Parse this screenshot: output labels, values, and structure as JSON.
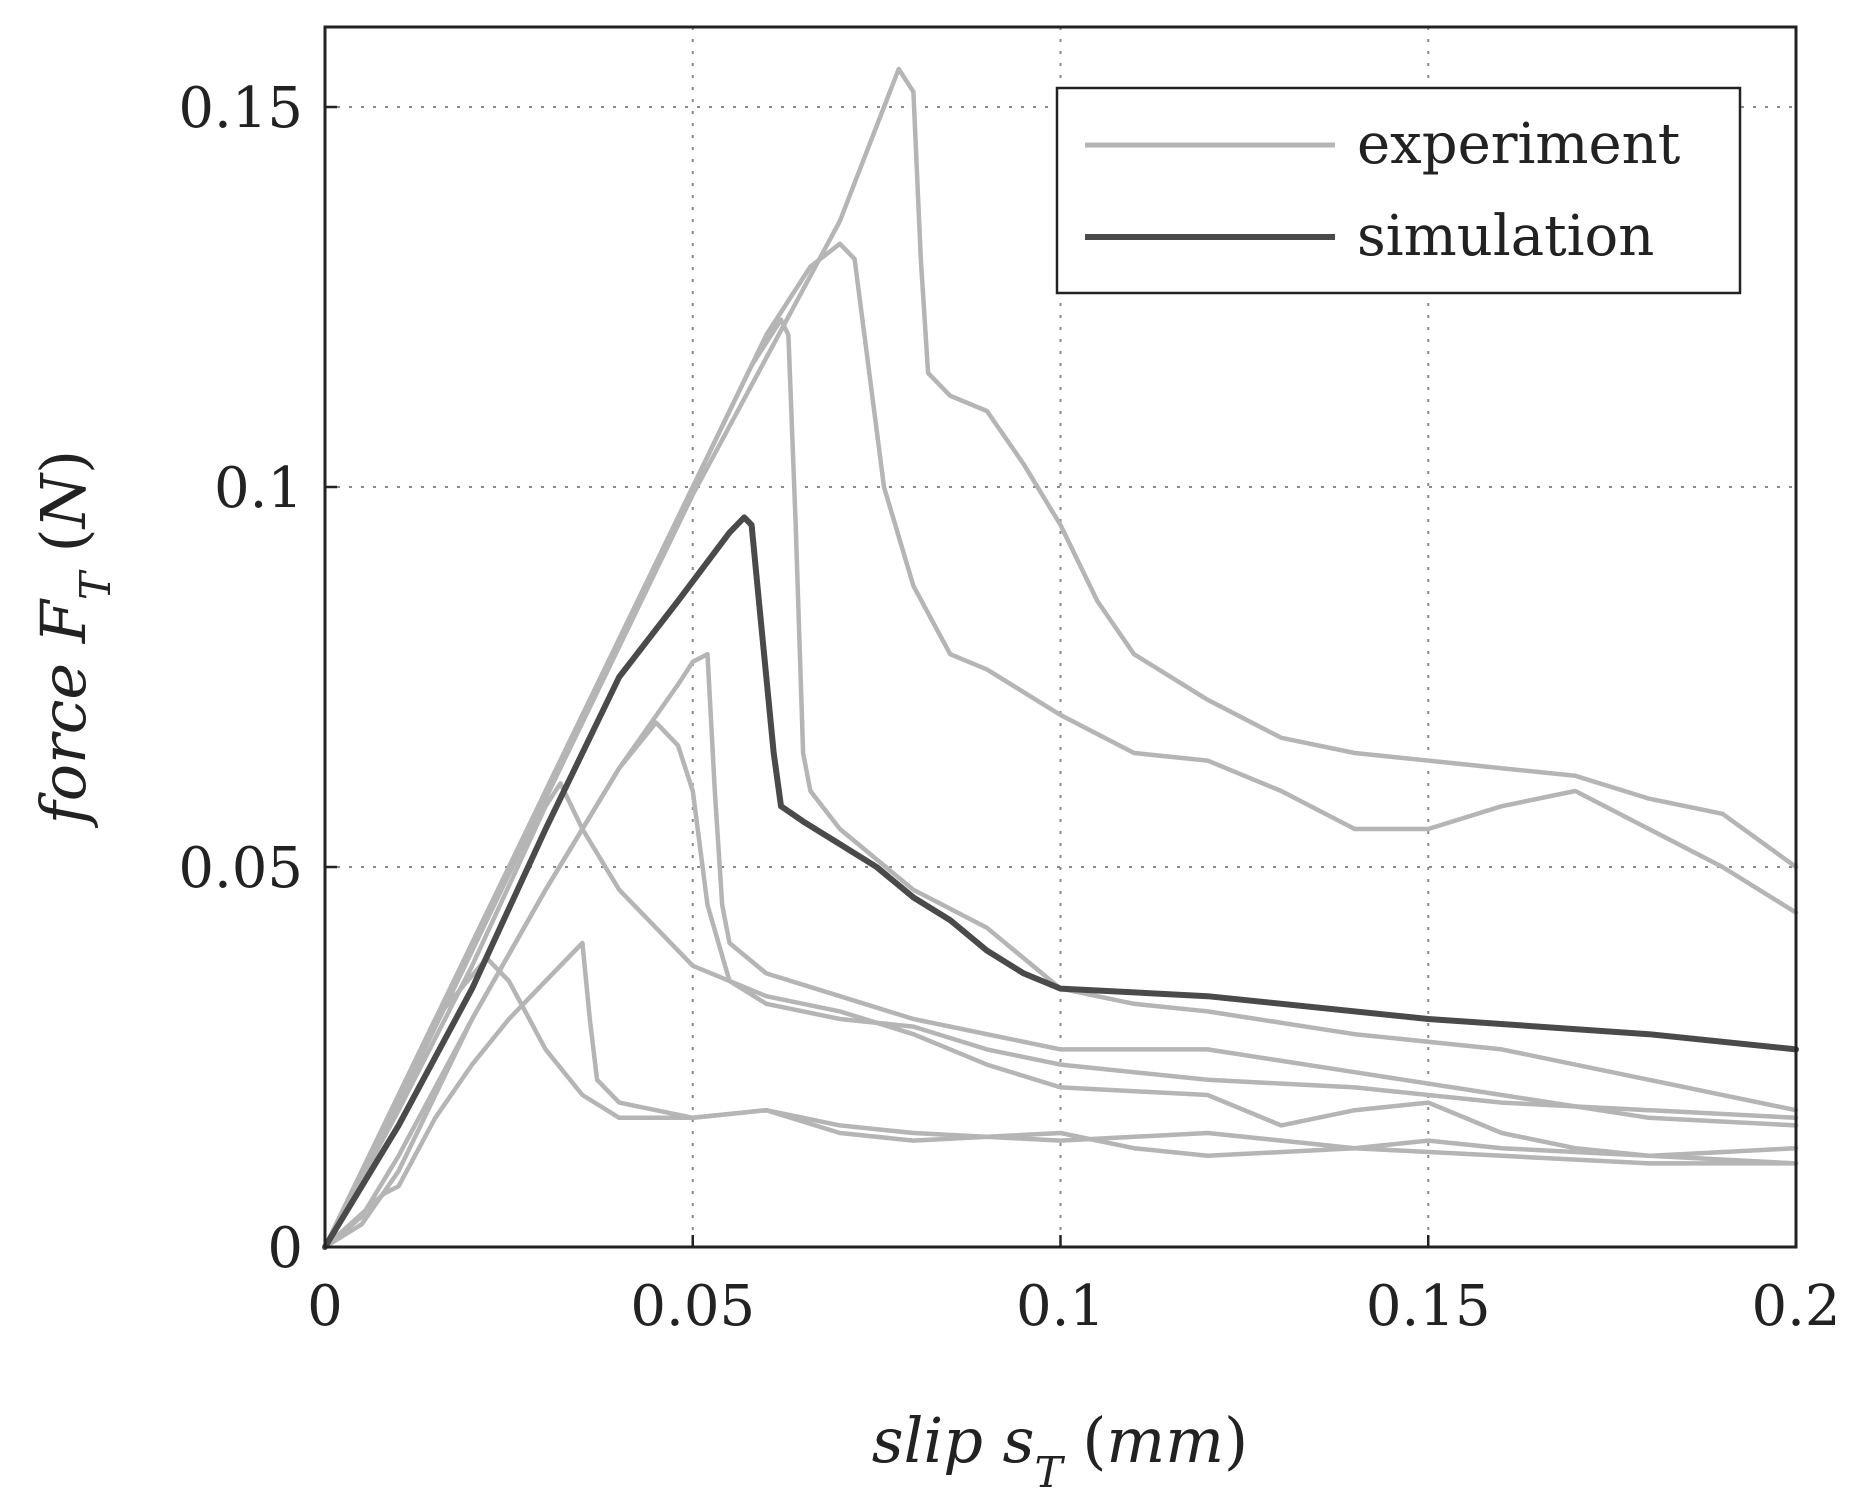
{
  "chart_data": {
    "type": "line",
    "title": "",
    "xlabel": "slip s_T (mm)",
    "ylabel": "force F_T (N)",
    "xlim": [
      0,
      0.2
    ],
    "ylim": [
      0,
      0.16
    ],
    "grid": true,
    "legend_position": "top-right",
    "x_ticks": [
      0,
      0.05,
      0.1,
      0.15,
      0.2
    ],
    "x_tick_labels": [
      "0",
      "0.05",
      "0.1",
      "0.15",
      "0.2"
    ],
    "y_ticks": [
      0,
      0.05,
      0.1,
      0.15
    ],
    "y_tick_labels": [
      "0",
      "0.05",
      "0.1",
      "0.15"
    ],
    "legend": [
      {
        "label": "experiment",
        "color": "#b5b5b5"
      },
      {
        "label": "simulation",
        "color": "#4a4a4a"
      }
    ],
    "series": [
      {
        "name": "simulation",
        "group": "simulation",
        "color": "#4a4a4a",
        "points": [
          [
            0,
            0
          ],
          [
            0.01,
            0.016
          ],
          [
            0.02,
            0.034
          ],
          [
            0.03,
            0.055
          ],
          [
            0.04,
            0.075
          ],
          [
            0.048,
            0.085
          ],
          [
            0.055,
            0.094
          ],
          [
            0.057,
            0.096
          ],
          [
            0.058,
            0.095
          ],
          [
            0.059,
            0.085
          ],
          [
            0.061,
            0.065
          ],
          [
            0.062,
            0.058
          ],
          [
            0.065,
            0.056
          ],
          [
            0.07,
            0.053
          ],
          [
            0.075,
            0.05
          ],
          [
            0.08,
            0.046
          ],
          [
            0.085,
            0.043
          ],
          [
            0.09,
            0.039
          ],
          [
            0.095,
            0.036
          ],
          [
            0.1,
            0.034
          ],
          [
            0.12,
            0.033
          ],
          [
            0.15,
            0.03
          ],
          [
            0.18,
            0.028
          ],
          [
            0.2,
            0.026
          ]
        ]
      },
      {
        "name": "experiment 1",
        "group": "experiment",
        "color": "#b5b5b5",
        "points": [
          [
            0,
            0
          ],
          [
            0.01,
            0.019
          ],
          [
            0.02,
            0.039
          ],
          [
            0.03,
            0.059
          ],
          [
            0.04,
            0.079
          ],
          [
            0.05,
            0.099
          ],
          [
            0.06,
            0.117
          ],
          [
            0.07,
            0.135
          ],
          [
            0.078,
            0.155
          ],
          [
            0.08,
            0.152
          ],
          [
            0.081,
            0.13
          ],
          [
            0.082,
            0.115
          ],
          [
            0.085,
            0.112
          ],
          [
            0.09,
            0.11
          ],
          [
            0.095,
            0.103
          ],
          [
            0.1,
            0.095
          ],
          [
            0.105,
            0.085
          ],
          [
            0.11,
            0.078
          ],
          [
            0.12,
            0.072
          ],
          [
            0.13,
            0.067
          ],
          [
            0.14,
            0.065
          ],
          [
            0.15,
            0.064
          ],
          [
            0.16,
            0.063
          ],
          [
            0.17,
            0.062
          ],
          [
            0.18,
            0.059
          ],
          [
            0.19,
            0.057
          ],
          [
            0.2,
            0.05
          ]
        ]
      },
      {
        "name": "experiment 2",
        "group": "experiment",
        "color": "#b5b5b5",
        "points": [
          [
            0,
            0
          ],
          [
            0.01,
            0.019
          ],
          [
            0.02,
            0.039
          ],
          [
            0.03,
            0.06
          ],
          [
            0.04,
            0.08
          ],
          [
            0.05,
            0.1
          ],
          [
            0.06,
            0.12
          ],
          [
            0.066,
            0.129
          ],
          [
            0.07,
            0.132
          ],
          [
            0.072,
            0.13
          ],
          [
            0.074,
            0.115
          ],
          [
            0.076,
            0.1
          ],
          [
            0.08,
            0.087
          ],
          [
            0.085,
            0.078
          ],
          [
            0.09,
            0.076
          ],
          [
            0.1,
            0.07
          ],
          [
            0.11,
            0.065
          ],
          [
            0.12,
            0.064
          ],
          [
            0.13,
            0.06
          ],
          [
            0.14,
            0.055
          ],
          [
            0.15,
            0.055
          ],
          [
            0.16,
            0.058
          ],
          [
            0.17,
            0.06
          ],
          [
            0.18,
            0.055
          ],
          [
            0.19,
            0.05
          ],
          [
            0.2,
            0.044
          ]
        ]
      },
      {
        "name": "experiment 3",
        "group": "experiment",
        "color": "#b5b5b5",
        "points": [
          [
            0,
            0
          ],
          [
            0.01,
            0.02
          ],
          [
            0.02,
            0.04
          ],
          [
            0.03,
            0.06
          ],
          [
            0.04,
            0.08
          ],
          [
            0.05,
            0.1
          ],
          [
            0.058,
            0.116
          ],
          [
            0.062,
            0.122
          ],
          [
            0.063,
            0.12
          ],
          [
            0.064,
            0.095
          ],
          [
            0.065,
            0.065
          ],
          [
            0.066,
            0.06
          ],
          [
            0.07,
            0.055
          ],
          [
            0.08,
            0.047
          ],
          [
            0.09,
            0.042
          ],
          [
            0.1,
            0.034
          ],
          [
            0.11,
            0.032
          ],
          [
            0.12,
            0.031
          ],
          [
            0.14,
            0.028
          ],
          [
            0.16,
            0.026
          ],
          [
            0.18,
            0.022
          ],
          [
            0.2,
            0.018
          ]
        ]
      },
      {
        "name": "experiment 4",
        "group": "experiment",
        "color": "#b5b5b5",
        "points": [
          [
            0,
            0
          ],
          [
            0.005,
            0.004
          ],
          [
            0.01,
            0.012
          ],
          [
            0.02,
            0.03
          ],
          [
            0.03,
            0.047
          ],
          [
            0.04,
            0.063
          ],
          [
            0.048,
            0.074
          ],
          [
            0.05,
            0.077
          ],
          [
            0.052,
            0.078
          ],
          [
            0.053,
            0.06
          ],
          [
            0.054,
            0.045
          ],
          [
            0.055,
            0.04
          ],
          [
            0.06,
            0.036
          ],
          [
            0.07,
            0.033
          ],
          [
            0.08,
            0.03
          ],
          [
            0.1,
            0.026
          ],
          [
            0.12,
            0.026
          ],
          [
            0.14,
            0.023
          ],
          [
            0.16,
            0.02
          ],
          [
            0.18,
            0.017
          ],
          [
            0.2,
            0.016
          ]
        ]
      },
      {
        "name": "experiment 5",
        "group": "experiment",
        "color": "#b5b5b5",
        "points": [
          [
            0,
            0
          ],
          [
            0.005,
            0.003
          ],
          [
            0.01,
            0.01
          ],
          [
            0.02,
            0.03
          ],
          [
            0.03,
            0.047
          ],
          [
            0.04,
            0.063
          ],
          [
            0.045,
            0.069
          ],
          [
            0.048,
            0.066
          ],
          [
            0.05,
            0.06
          ],
          [
            0.052,
            0.045
          ],
          [
            0.055,
            0.035
          ],
          [
            0.06,
            0.032
          ],
          [
            0.07,
            0.03
          ],
          [
            0.08,
            0.029
          ],
          [
            0.09,
            0.026
          ],
          [
            0.1,
            0.024
          ],
          [
            0.12,
            0.022
          ],
          [
            0.14,
            0.021
          ],
          [
            0.16,
            0.019
          ],
          [
            0.18,
            0.018
          ],
          [
            0.2,
            0.017
          ]
        ]
      },
      {
        "name": "experiment 6",
        "group": "experiment",
        "color": "#b5b5b5",
        "points": [
          [
            0,
            0
          ],
          [
            0.01,
            0.018
          ],
          [
            0.02,
            0.037
          ],
          [
            0.03,
            0.058
          ],
          [
            0.032,
            0.061
          ],
          [
            0.035,
            0.055
          ],
          [
            0.04,
            0.047
          ],
          [
            0.045,
            0.042
          ],
          [
            0.05,
            0.037
          ],
          [
            0.06,
            0.033
          ],
          [
            0.07,
            0.031
          ],
          [
            0.08,
            0.028
          ],
          [
            0.09,
            0.024
          ],
          [
            0.1,
            0.021
          ],
          [
            0.12,
            0.02
          ],
          [
            0.13,
            0.016
          ],
          [
            0.14,
            0.018
          ],
          [
            0.15,
            0.019
          ],
          [
            0.16,
            0.015
          ],
          [
            0.17,
            0.013
          ],
          [
            0.18,
            0.012
          ],
          [
            0.2,
            0.011
          ]
        ]
      },
      {
        "name": "experiment 7",
        "group": "experiment",
        "color": "#b5b5b5",
        "points": [
          [
            0,
            0
          ],
          [
            0.008,
            0.007
          ],
          [
            0.01,
            0.008
          ],
          [
            0.015,
            0.017
          ],
          [
            0.02,
            0.024
          ],
          [
            0.025,
            0.03
          ],
          [
            0.03,
            0.035
          ],
          [
            0.035,
            0.04
          ],
          [
            0.036,
            0.03
          ],
          [
            0.037,
            0.022
          ],
          [
            0.04,
            0.019
          ],
          [
            0.045,
            0.018
          ],
          [
            0.05,
            0.017
          ],
          [
            0.06,
            0.018
          ],
          [
            0.07,
            0.016
          ],
          [
            0.08,
            0.015
          ],
          [
            0.1,
            0.014
          ],
          [
            0.12,
            0.015
          ],
          [
            0.14,
            0.013
          ],
          [
            0.15,
            0.014
          ],
          [
            0.16,
            0.013
          ],
          [
            0.18,
            0.012
          ],
          [
            0.2,
            0.013
          ]
        ]
      },
      {
        "name": "experiment 8",
        "group": "experiment",
        "color": "#b5b5b5",
        "points": [
          [
            0,
            0
          ],
          [
            0.01,
            0.02
          ],
          [
            0.015,
            0.03
          ],
          [
            0.022,
            0.038
          ],
          [
            0.025,
            0.035
          ],
          [
            0.03,
            0.026
          ],
          [
            0.035,
            0.02
          ],
          [
            0.04,
            0.017
          ],
          [
            0.05,
            0.017
          ],
          [
            0.06,
            0.018
          ],
          [
            0.07,
            0.015
          ],
          [
            0.08,
            0.014
          ],
          [
            0.1,
            0.015
          ],
          [
            0.11,
            0.013
          ],
          [
            0.12,
            0.012
          ],
          [
            0.14,
            0.013
          ],
          [
            0.16,
            0.012
          ],
          [
            0.18,
            0.011
          ],
          [
            0.2,
            0.011
          ]
        ]
      }
    ]
  }
}
